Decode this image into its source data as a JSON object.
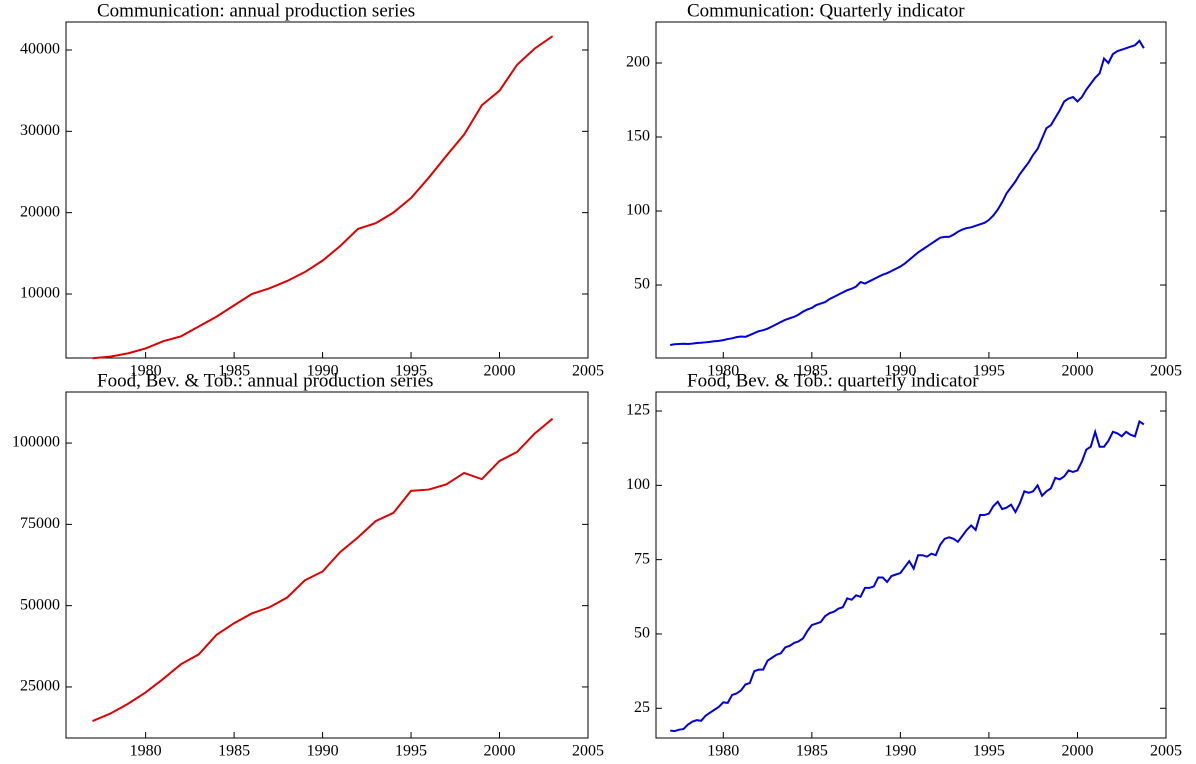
{
  "chart_data": [
    {
      "type": "line",
      "title": "Communication: annual production series",
      "color": "#e00000",
      "x": [
        1977,
        1978,
        1979,
        1980,
        1981,
        1982,
        1983,
        1984,
        1985,
        1986,
        1987,
        1988,
        1989,
        1990,
        1991,
        1992,
        1993,
        1994,
        1995,
        1996,
        1997,
        1998,
        1999,
        2000,
        2001,
        2002,
        2003
      ],
      "values": [
        2100,
        2300,
        2700,
        3300,
        4200,
        4800,
        6000,
        7200,
        8600,
        10000,
        10700,
        11600,
        12700,
        14100,
        15900,
        18000,
        18700,
        20000,
        21800,
        24300,
        27000,
        29600,
        33200,
        35000,
        38200,
        40200,
        41700
      ],
      "xlim": [
        1975.5,
        2005
      ],
      "xticks": [
        1980,
        1985,
        1990,
        1995,
        2000,
        2005
      ],
      "ylim": [
        2130,
        43440
      ],
      "yticks": [
        10000,
        20000,
        30000,
        40000
      ]
    },
    {
      "type": "line",
      "title": "Communication: Quarterly indicator",
      "color": "#0000dd",
      "x": [
        1977,
        1977.25,
        1977.5,
        1977.75,
        1978,
        1978.25,
        1978.5,
        1978.75,
        1979,
        1979.25,
        1979.5,
        1979.75,
        1980,
        1980.25,
        1980.5,
        1980.75,
        1981,
        1981.25,
        1981.5,
        1981.75,
        1982,
        1982.25,
        1982.5,
        1982.75,
        1983,
        1983.25,
        1983.5,
        1983.75,
        1984,
        1984.25,
        1984.5,
        1984.75,
        1985,
        1985.25,
        1985.5,
        1985.75,
        1986,
        1986.25,
        1986.5,
        1986.75,
        1987,
        1987.25,
        1987.5,
        1987.75,
        1988,
        1988.25,
        1988.5,
        1988.75,
        1989,
        1989.25,
        1989.5,
        1989.75,
        1990,
        1990.25,
        1990.5,
        1990.75,
        1991,
        1991.25,
        1991.5,
        1991.75,
        1992,
        1992.25,
        1992.5,
        1992.75,
        1993,
        1993.25,
        1993.5,
        1993.75,
        1994,
        1994.25,
        1994.5,
        1994.75,
        1995,
        1995.25,
        1995.5,
        1995.75,
        1996,
        1996.25,
        1996.5,
        1996.75,
        1997,
        1997.25,
        1997.5,
        1997.75,
        1998,
        1998.25,
        1998.5,
        1998.75,
        1999,
        1999.25,
        1999.5,
        1999.75,
        2000,
        2000.25,
        2000.5,
        2000.75,
        2001,
        2001.25,
        2001.5,
        2001.75,
        2002,
        2002.25,
        2002.5,
        2002.75,
        2003,
        2003.25,
        2003.5,
        2003.75
      ],
      "values": [
        9.5,
        10,
        10.2,
        10.3,
        10.2,
        10.4,
        10.8,
        11,
        11.3,
        11.6,
        12,
        12.3,
        12.8,
        13.5,
        14,
        14.8,
        15.2,
        15,
        16.2,
        17.5,
        18.8,
        19.5,
        20.5,
        22,
        23.5,
        25,
        26.5,
        27.5,
        28.5,
        30,
        32,
        33.5,
        34.5,
        36.5,
        37.5,
        38.5,
        40.5,
        42,
        43.5,
        45,
        46.5,
        47.5,
        49,
        52,
        51,
        52.5,
        54,
        55.5,
        57,
        58,
        59.5,
        61,
        62.5,
        64.5,
        67,
        69.5,
        72,
        74,
        76,
        78,
        80,
        82,
        82.5,
        82.5,
        84,
        86,
        87.5,
        88.5,
        89,
        90,
        91,
        92,
        94,
        97,
        101,
        106,
        112,
        116,
        120,
        125,
        129,
        133,
        138,
        142,
        149,
        156,
        158,
        163,
        168,
        174,
        176,
        177,
        174,
        177,
        182,
        186,
        190,
        193,
        203,
        200,
        206,
        208,
        209,
        210,
        211,
        212,
        215,
        210
      ],
      "xlim": [
        1976.2,
        2005
      ],
      "xticks": [
        1980,
        1985,
        1990,
        1995,
        2000,
        2005
      ],
      "ylim": [
        0.7,
        227.7
      ],
      "yticks": [
        50,
        100,
        150,
        200
      ]
    },
    {
      "type": "line",
      "title": "Food, Bev. & Tob.: annual production series",
      "color": "#e00000",
      "x": [
        1977,
        1978,
        1979,
        1980,
        1981,
        1982,
        1983,
        1984,
        1985,
        1986,
        1987,
        1988,
        1989,
        1990,
        1991,
        1992,
        1993,
        1994,
        1995,
        1996,
        1997,
        1998,
        1999,
        2000,
        2001,
        2002,
        2003
      ],
      "values": [
        14500,
        16800,
        19800,
        23300,
        27500,
        32000,
        35000,
        41000,
        44600,
        47600,
        49500,
        52500,
        57800,
        60500,
        66500,
        71000,
        76000,
        78500,
        85300,
        85700,
        87300,
        90800,
        88900,
        94500,
        97300,
        103000,
        107500
      ],
      "xlim": [
        1975.5,
        2005
      ],
      "xticks": [
        1980,
        1985,
        1990,
        1995,
        2000,
        2005
      ],
      "ylim": [
        9300,
        115700
      ],
      "yticks": [
        25000,
        50000,
        75000,
        100000
      ]
    },
    {
      "type": "line",
      "title": "Food, Bev. & Tob.: quarterly indicator",
      "color": "#0000dd",
      "x": [
        1977,
        1977.25,
        1977.5,
        1977.75,
        1978,
        1978.25,
        1978.5,
        1978.75,
        1979,
        1979.25,
        1979.5,
        1979.75,
        1980,
        1980.25,
        1980.5,
        1980.75,
        1981,
        1981.25,
        1981.5,
        1981.75,
        1982,
        1982.25,
        1982.5,
        1982.75,
        1983,
        1983.25,
        1983.5,
        1983.75,
        1984,
        1984.25,
        1984.5,
        1984.75,
        1985,
        1985.25,
        1985.5,
        1985.75,
        1986,
        1986.25,
        1986.5,
        1986.75,
        1987,
        1987.25,
        1987.5,
        1987.75,
        1988,
        1988.25,
        1988.5,
        1988.75,
        1989,
        1989.25,
        1989.5,
        1989.75,
        1990,
        1990.25,
        1990.5,
        1990.75,
        1991,
        1991.25,
        1991.5,
        1991.75,
        1992,
        1992.25,
        1992.5,
        1992.75,
        1993,
        1993.25,
        1993.5,
        1993.75,
        1994,
        1994.25,
        1994.5,
        1994.75,
        1995,
        1995.25,
        1995.5,
        1995.75,
        1996,
        1996.25,
        1996.5,
        1996.75,
        1997,
        1997.25,
        1997.5,
        1997.75,
        1998,
        1998.25,
        1998.5,
        1998.75,
        1999,
        1999.25,
        1999.5,
        1999.75,
        2000,
        2000.25,
        2000.5,
        2000.75,
        2001,
        2001.25,
        2001.5,
        2001.75,
        2002,
        2002.25,
        2002.5,
        2002.75,
        2003,
        2003.25,
        2003.5,
        2003.75
      ],
      "values": [
        17.5,
        17.3,
        17.8,
        18,
        19.5,
        20.5,
        21,
        20.8,
        22.5,
        23.5,
        24.5,
        25.5,
        27,
        26.8,
        29.5,
        30,
        31,
        33,
        33.5,
        37.5,
        38,
        38,
        41,
        42,
        43,
        43.5,
        45.5,
        46,
        47,
        47.5,
        48.5,
        51,
        53,
        53.5,
        54,
        56,
        57,
        57.5,
        58.5,
        59,
        62,
        61.5,
        63,
        62.5,
        65.5,
        65.5,
        66,
        69,
        69,
        67.5,
        69.5,
        70,
        70.5,
        72.5,
        74.5,
        72,
        76.5,
        76.5,
        76,
        77,
        76.5,
        80,
        82,
        82.5,
        82,
        81,
        83,
        85,
        86.5,
        85,
        90,
        90,
        90.5,
        93,
        94.5,
        92,
        92.5,
        93.5,
        91,
        94,
        98,
        97.5,
        98,
        100,
        96.5,
        98,
        99,
        102.5,
        102,
        103,
        105,
        104.5,
        105,
        108,
        112,
        113,
        118,
        113,
        113,
        115,
        118,
        117.5,
        116.5,
        118,
        117,
        116.5,
        121.5,
        120.5
      ],
      "xlim": [
        1976.2,
        2005
      ],
      "xticks": [
        1980,
        1985,
        1990,
        1995,
        2000,
        2005
      ],
      "ylim": [
        15,
        131.4
      ],
      "yticks": [
        25,
        50,
        75,
        100,
        125
      ]
    }
  ]
}
